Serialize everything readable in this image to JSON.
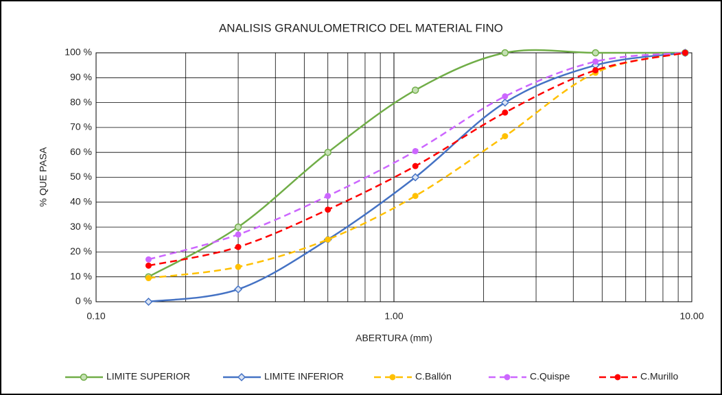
{
  "chart_data": {
    "type": "line",
    "title": "ANALISIS GRANULOMETRICO DEL MATERIAL FINO",
    "x_label": "ABERTURA (mm)",
    "y_label": "% QUE PASA",
    "x": [
      0.15,
      0.3,
      0.6,
      1.18,
      2.36,
      4.75,
      9.5
    ],
    "xlog": true,
    "xlim": [
      0.1,
      10
    ],
    "xticks": [
      {
        "value": 0.1,
        "label": "0.10"
      },
      {
        "value": 1,
        "label": "1.00"
      },
      {
        "value": 10,
        "label": "10.00"
      }
    ],
    "xminorticks": [
      0.2,
      0.3,
      0.4,
      0.5,
      0.6,
      0.7,
      0.8,
      0.9,
      2,
      3,
      4,
      5,
      6,
      7,
      8,
      9
    ],
    "ylim": [
      0,
      100
    ],
    "yticks": [
      {
        "value": 0,
        "label": "0 %"
      },
      {
        "value": 10,
        "label": "10 %"
      },
      {
        "value": 20,
        "label": "20 %"
      },
      {
        "value": 30,
        "label": "30 %"
      },
      {
        "value": 40,
        "label": "40 %"
      },
      {
        "value": 50,
        "label": "50 %"
      },
      {
        "value": 60,
        "label": "60 %"
      },
      {
        "value": 70,
        "label": "70 %"
      },
      {
        "value": 80,
        "label": "80 %"
      },
      {
        "value": 90,
        "label": "90 %"
      },
      {
        "value": 100,
        "label": "100 %"
      }
    ],
    "grid": true,
    "legend": "bottom",
    "series": [
      {
        "name": "LIMITE SUPERIOR",
        "color": "#70ad47",
        "dashed": false,
        "marker": "circle",
        "values": [
          10,
          30,
          60,
          85,
          100,
          100,
          100
        ]
      },
      {
        "name": "LIMITE INFERIOR",
        "color": "#4472c4",
        "dashed": false,
        "marker": "diamond",
        "values": [
          0,
          5,
          25,
          50,
          80,
          95,
          100
        ]
      },
      {
        "name": "C.Ballón",
        "color": "#ffc000",
        "dashed": true,
        "marker": "dot",
        "values": [
          9.5,
          14,
          25,
          42.5,
          66.5,
          92,
          100
        ]
      },
      {
        "name": "C.Quispe",
        "color": "#cc66ff",
        "dashed": true,
        "marker": "dot",
        "values": [
          17,
          27,
          42.5,
          60.5,
          82.5,
          96.5,
          100
        ]
      },
      {
        "name": "C.Murillo",
        "color": "#ff0000",
        "dashed": true,
        "marker": "dot",
        "values": [
          14.5,
          22,
          37,
          54.5,
          76,
          93,
          100
        ]
      }
    ]
  }
}
